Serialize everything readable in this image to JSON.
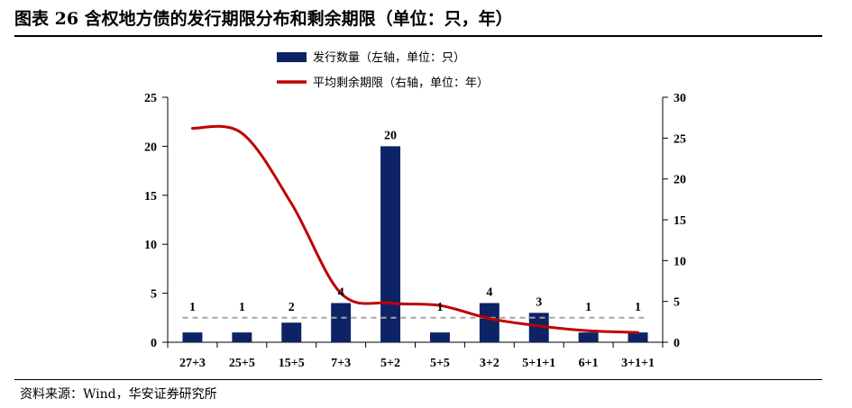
{
  "header": {
    "title": "图表 26 含权地方债的发行期限分布和剩余期限（单位：只，年）"
  },
  "footer": {
    "source": "资料来源：Wind，华安证券研究所"
  },
  "colors": {
    "bar": "#0d2366",
    "line": "#c00000",
    "reference": "#a6a6a6"
  },
  "chart_data": {
    "type": "bar",
    "categories": [
      "27+3",
      "25+5",
      "15+5",
      "7+3",
      "5+2",
      "5+5",
      "3+2",
      "5+1+1",
      "6+1",
      "3+1+1"
    ],
    "series": [
      {
        "name": "发行数量（左轴，单位：只）",
        "type": "bar",
        "axis": "left",
        "values": [
          1,
          1,
          2,
          4,
          20,
          1,
          4,
          3,
          1,
          1
        ]
      },
      {
        "name": "平均剩余期限（右轴，单位：年）",
        "type": "line",
        "axis": "right",
        "values": [
          26.2,
          25.6,
          17.0,
          6.0,
          4.8,
          4.5,
          2.9,
          2.0,
          1.4,
          1.2
        ]
      }
    ],
    "reference_line": {
      "axis": "left",
      "value": 2.5,
      "style": "dashed"
    },
    "data_labels": [
      "1",
      "1",
      "2",
      "4",
      "20",
      "1",
      "4",
      "3",
      "1",
      "1"
    ],
    "y_left": {
      "lim": [
        0,
        25
      ],
      "ticks": [
        "0",
        "5",
        "10",
        "15",
        "20",
        "25"
      ]
    },
    "y_right": {
      "lim": [
        0,
        30
      ],
      "ticks": [
        "0",
        "5",
        "10",
        "15",
        "20",
        "25",
        "30"
      ]
    },
    "legend_position": "top-center",
    "grid": false
  }
}
